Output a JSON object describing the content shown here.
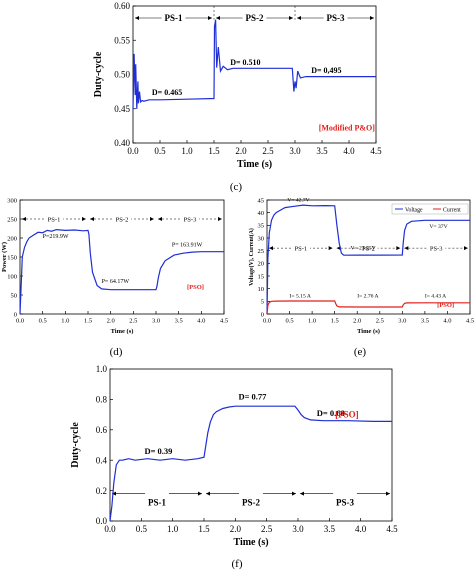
{
  "chart_data": [
    {
      "panel": "c",
      "type": "line",
      "xlabel": "Time (s)",
      "ylabel": "Duty-cycle",
      "xlim": [
        0,
        4.5
      ],
      "ylim": [
        0.4,
        0.6
      ],
      "xticks": [
        "0.0",
        "0.5",
        "1.0",
        "1.5",
        "2.0",
        "2.5",
        "3.0",
        "3.5",
        "4.0",
        "4.5"
      ],
      "yticks": [
        "0.40",
        "0.45",
        "0.50",
        "0.55",
        "0.60"
      ],
      "color": "#1f2fd6",
      "grid": false,
      "tag": "[Modified P&O]",
      "tag_color": "#e0201b",
      "segments": [
        {
          "label": "PS-1",
          "from": 0,
          "to": 1.5
        },
        {
          "label": "PS-2",
          "from": 1.5,
          "to": 3.0
        },
        {
          "label": "PS-3",
          "from": 3.0,
          "to": 4.5
        }
      ],
      "annotations": [
        {
          "text": "D= 0.465",
          "x": 0.35,
          "y": 0.47
        },
        {
          "text": "D= 0.510",
          "x": 1.8,
          "y": 0.514
        },
        {
          "text": "D= 0,495",
          "x": 3.3,
          "y": 0.502
        }
      ],
      "series": [
        {
          "x": [
            0.0,
            0.02,
            0.04,
            0.05,
            0.07,
            0.09,
            0.1,
            0.12,
            0.14,
            0.17,
            0.2,
            0.3,
            0.5,
            1.0,
            1.5,
            1.51,
            1.53,
            1.55,
            1.58,
            1.62,
            1.67,
            1.75,
            1.85,
            2.0,
            2.5,
            2.95,
            2.98,
            3.0,
            3.02,
            3.05,
            3.1,
            3.2,
            3.5,
            4.0,
            4.5
          ],
          "y": [
            0.45,
            0.53,
            0.47,
            0.515,
            0.45,
            0.49,
            0.458,
            0.475,
            0.46,
            0.462,
            0.461,
            0.463,
            0.463,
            0.464,
            0.465,
            0.57,
            0.58,
            0.51,
            0.54,
            0.505,
            0.512,
            0.507,
            0.509,
            0.509,
            0.509,
            0.509,
            0.475,
            0.49,
            0.48,
            0.505,
            0.495,
            0.497,
            0.497,
            0.497,
            0.497
          ]
        }
      ]
    },
    {
      "panel": "d",
      "type": "line",
      "xlabel": "Time (s)",
      "ylabel": "Power (W)",
      "xlim": [
        0,
        4.5
      ],
      "ylim": [
        0,
        300
      ],
      "xticks": [
        "0.0",
        "0.5",
        "1.0",
        "1.5",
        "2.0",
        "2.5",
        "3.0",
        "3.5",
        "4.0",
        "4.5"
      ],
      "yticks": [
        "0",
        "50",
        "100",
        "150",
        "200",
        "250",
        "300"
      ],
      "color": "#1f2fd6",
      "grid": false,
      "tag": "[PSO]",
      "tag_color": "#e0201b",
      "segments": [
        {
          "label": "PS-1",
          "from": 0,
          "to": 1.5
        },
        {
          "label": "PS-2",
          "from": 1.5,
          "to": 3.0
        },
        {
          "label": "PS-3",
          "from": 3.0,
          "to": 4.5
        }
      ],
      "annotations": [
        {
          "text": "P=219.9W",
          "x": 0.5,
          "y": 200
        },
        {
          "text": "P= 64.17W",
          "x": 1.8,
          "y": 82
        },
        {
          "text": "P= 163.91W",
          "x": 3.35,
          "y": 178
        }
      ],
      "series": [
        {
          "x": [
            0.0,
            0.03,
            0.05,
            0.1,
            0.15,
            0.2,
            0.3,
            0.4,
            0.5,
            0.6,
            0.7,
            0.8,
            1.0,
            1.2,
            1.4,
            1.5,
            1.52,
            1.55,
            1.6,
            1.7,
            1.8,
            2.0,
            2.5,
            3.0,
            3.02,
            3.05,
            3.1,
            3.2,
            3.4,
            3.6,
            3.8,
            4.0,
            4.5
          ],
          "y": [
            0,
            90,
            150,
            175,
            190,
            200,
            208,
            215,
            214,
            220,
            218,
            222,
            220,
            221,
            219,
            220,
            210,
            160,
            110,
            75,
            66,
            64,
            64,
            64,
            72,
            95,
            120,
            140,
            155,
            160,
            163,
            164,
            164
          ]
        }
      ]
    },
    {
      "panel": "e",
      "type": "line",
      "xlabel": "Time (s)",
      "ylabel": "Voltage(V), Current(A)",
      "xlim": [
        0,
        4.5
      ],
      "ylim": [
        0,
        45
      ],
      "xticks": [
        "0.0",
        "0.5",
        "1.0",
        "1.5",
        "2.0",
        "2.5",
        "3.0",
        "3.5",
        "4.0",
        "4.5"
      ],
      "yticks": [
        "0",
        "5",
        "10",
        "15",
        "20",
        "25",
        "30",
        "35",
        "40",
        "45"
      ],
      "grid": false,
      "legend": "top-right",
      "tag": "[PSO]",
      "tag_color": "#e0201b",
      "segments": [
        {
          "label": "PS-1",
          "from": 0,
          "to": 1.5
        },
        {
          "label": "PS-2",
          "from": 1.5,
          "to": 3.0
        },
        {
          "label": "PS-3",
          "from": 3.0,
          "to": 4.5
        }
      ],
      "annotations": [
        {
          "text": "V= 42.7V",
          "x": 0.45,
          "y": 44.5
        },
        {
          "text": "V= 23.25V",
          "x": 1.85,
          "y": 25.5
        },
        {
          "text": "V= 37V",
          "x": 3.6,
          "y": 34
        },
        {
          "text": "I= 5.15 A",
          "x": 0.5,
          "y": 6.6
        },
        {
          "text": "I= 2.76 A",
          "x": 2.0,
          "y": 6.6
        },
        {
          "text": "I= 4.43 A",
          "x": 3.5,
          "y": 6.6
        }
      ],
      "series": [
        {
          "name": "Voltage",
          "color": "#1f2fd6",
          "x": [
            0.0,
            0.02,
            0.05,
            0.1,
            0.15,
            0.2,
            0.3,
            0.4,
            0.6,
            0.8,
            1.0,
            1.3,
            1.5,
            1.55,
            1.6,
            1.65,
            1.7,
            2.0,
            2.5,
            3.0,
            3.02,
            3.05,
            3.1,
            3.2,
            3.5,
            4.0,
            4.5
          ],
          "y": [
            0,
            22,
            32,
            37,
            39,
            40,
            41,
            42,
            42.5,
            43,
            42.7,
            42.8,
            42.7,
            35,
            28,
            24,
            23.2,
            23.25,
            23.25,
            23.3,
            28,
            33,
            35.5,
            36.6,
            37,
            37,
            37
          ]
        },
        {
          "name": "Current",
          "color": "#e0201b",
          "x": [
            0.0,
            0.02,
            0.05,
            0.1,
            0.2,
            0.5,
            1.0,
            1.5,
            1.52,
            1.55,
            1.6,
            2.0,
            2.5,
            3.0,
            3.02,
            3.05,
            3.1,
            3.5,
            4.0,
            4.5
          ],
          "y": [
            0,
            3.5,
            4.6,
            5.0,
            5.1,
            5.15,
            5.15,
            5.15,
            4.2,
            3.2,
            2.8,
            2.76,
            2.76,
            2.76,
            3.6,
            4.2,
            4.4,
            4.43,
            4.43,
            4.43
          ]
        }
      ]
    },
    {
      "panel": "f",
      "type": "line",
      "xlabel": "Time (s)",
      "ylabel": "Duty-cycle",
      "xlim": [
        0,
        4.5
      ],
      "ylim": [
        0,
        1.0
      ],
      "xticks": [
        "0.0",
        "0.5",
        "1.0",
        "1.5",
        "2.0",
        "2.5",
        "3.0",
        "3.5",
        "4.0",
        "4.5"
      ],
      "yticks": [
        "0.0",
        "0.2",
        "0.4",
        "0.6",
        "0.8",
        "1.0"
      ],
      "color": "#1f2fd6",
      "grid": false,
      "tag": "[PSO]",
      "tag_color": "#e0201b",
      "segments": [
        {
          "label": "PS-1",
          "from": 0,
          "to": 1.5
        },
        {
          "label": "PS-2",
          "from": 1.5,
          "to": 3.0
        },
        {
          "label": "PS-3",
          "from": 3.0,
          "to": 4.5
        }
      ],
      "annotations": [
        {
          "text": "D= 0.39",
          "x": 0.55,
          "y": 0.44
        },
        {
          "text": "D= 0.77",
          "x": 2.05,
          "y": 0.8
        },
        {
          "text": "D= 0.68",
          "x": 3.3,
          "y": 0.69
        }
      ],
      "series": [
        {
          "x": [
            0.0,
            0.03,
            0.06,
            0.1,
            0.15,
            0.2,
            0.3,
            0.4,
            0.6,
            0.8,
            1.0,
            1.2,
            1.4,
            1.5,
            1.53,
            1.56,
            1.6,
            1.65,
            1.7,
            1.8,
            1.9,
            2.0,
            2.5,
            2.95,
            3.0,
            3.05,
            3.1,
            3.2,
            3.4,
            3.8,
            4.2,
            4.5
          ],
          "y": [
            0.0,
            0.1,
            0.25,
            0.37,
            0.4,
            0.4,
            0.41,
            0.4,
            0.41,
            0.4,
            0.41,
            0.4,
            0.41,
            0.42,
            0.5,
            0.58,
            0.65,
            0.7,
            0.72,
            0.74,
            0.75,
            0.755,
            0.755,
            0.755,
            0.73,
            0.7,
            0.68,
            0.665,
            0.66,
            0.66,
            0.655,
            0.655
          ]
        }
      ]
    }
  ],
  "captions": [
    "(c)",
    "(d)",
    "(e)",
    "(f)"
  ]
}
